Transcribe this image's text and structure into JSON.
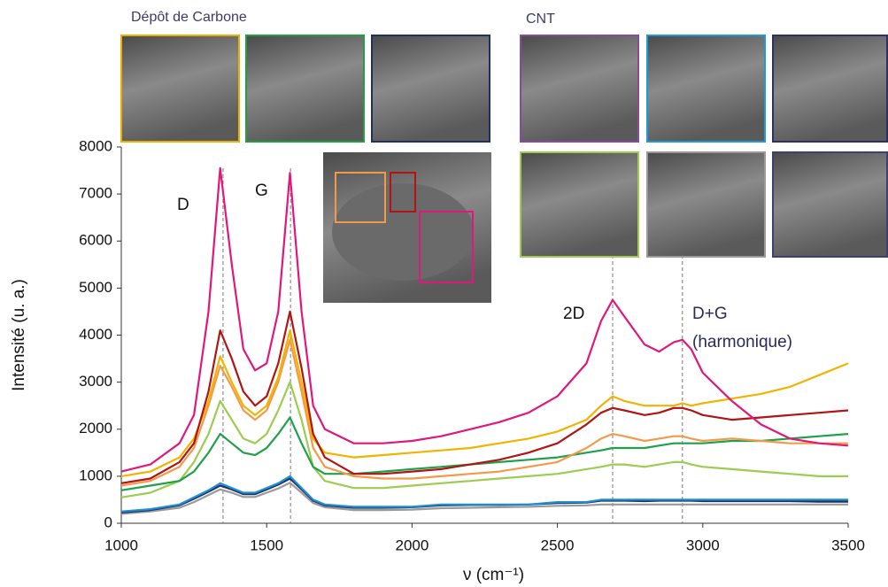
{
  "chart_data": {
    "type": "line",
    "x": [
      1000,
      1100,
      1200,
      1250,
      1300,
      1340,
      1380,
      1420,
      1460,
      1500,
      1540,
      1580,
      1620,
      1660,
      1700,
      1800,
      1900,
      2000,
      2100,
      2200,
      2300,
      2400,
      2500,
      2600,
      2650,
      2690,
      2730,
      2800,
      2850,
      2900,
      2930,
      2960,
      3000,
      3100,
      3200,
      3300,
      3400,
      3500
    ],
    "series": [
      {
        "color": "#9a9a9a",
        "values": [
          200,
          250,
          330,
          450,
          600,
          720,
          650,
          560,
          560,
          650,
          740,
          860,
          650,
          430,
          340,
          280,
          280,
          290,
          320,
          330,
          340,
          350,
          370,
          380,
          400,
          400,
          400,
          400,
          400,
          400,
          400,
          400,
          400,
          400,
          400,
          400,
          400,
          400
        ]
      },
      {
        "color": "#20305e",
        "values": [
          230,
          280,
          380,
          520,
          670,
          800,
          720,
          620,
          620,
          720,
          820,
          950,
          720,
          480,
          380,
          330,
          330,
          340,
          380,
          390,
          390,
          400,
          430,
          440,
          480,
          480,
          480,
          470,
          480,
          480,
          480,
          480,
          470,
          470,
          470,
          470,
          460,
          460
        ]
      },
      {
        "color": "#1e8fd2",
        "values": [
          250,
          300,
          400,
          550,
          700,
          850,
          750,
          650,
          650,
          750,
          850,
          1000,
          750,
          500,
          400,
          350,
          350,
          350,
          400,
          400,
          400,
          400,
          450,
          450,
          500,
          500,
          500,
          500,
          500,
          500,
          500,
          500,
          500,
          500,
          500,
          500,
          500,
          500
        ]
      },
      {
        "color": "#9ccc50",
        "values": [
          550,
          650,
          900,
          1300,
          1900,
          2600,
          2200,
          1800,
          1700,
          1900,
          2400,
          3000,
          2200,
          1200,
          900,
          750,
          750,
          800,
          850,
          900,
          950,
          1000,
          1050,
          1150,
          1200,
          1250,
          1250,
          1200,
          1250,
          1300,
          1300,
          1250,
          1200,
          1150,
          1100,
          1050,
          1000,
          1000
        ]
      },
      {
        "color": "#1fa04a",
        "values": [
          700,
          800,
          900,
          1100,
          1500,
          1900,
          1700,
          1500,
          1450,
          1600,
          1900,
          2250,
          1700,
          1200,
          1050,
          1050,
          1100,
          1150,
          1200,
          1250,
          1300,
          1350,
          1400,
          1500,
          1550,
          1600,
          1600,
          1600,
          1650,
          1700,
          1700,
          1700,
          1700,
          1750,
          1750,
          1800,
          1850,
          1900
        ]
      },
      {
        "color": "#f39a4a",
        "values": [
          800,
          900,
          1200,
          1600,
          2500,
          3350,
          2900,
          2400,
          2200,
          2400,
          3000,
          3900,
          2800,
          1600,
          1200,
          1000,
          950,
          950,
          1000,
          1050,
          1100,
          1200,
          1300,
          1600,
          1800,
          1900,
          1850,
          1750,
          1800,
          1850,
          1850,
          1800,
          1750,
          1800,
          1750,
          1700,
          1700,
          1700
        ]
      },
      {
        "color": "#f0b400",
        "values": [
          1000,
          1100,
          1400,
          1800,
          2600,
          3550,
          3000,
          2500,
          2300,
          2500,
          3100,
          4100,
          3000,
          1800,
          1500,
          1400,
          1450,
          1500,
          1550,
          1600,
          1700,
          1800,
          1950,
          2200,
          2500,
          2700,
          2600,
          2500,
          2500,
          2500,
          2550,
          2500,
          2550,
          2650,
          2750,
          2900,
          3150,
          3400
        ]
      },
      {
        "color": "#b01414",
        "values": [
          850,
          950,
          1300,
          1700,
          2800,
          4100,
          3500,
          2800,
          2500,
          2700,
          3400,
          4500,
          3300,
          1900,
          1400,
          1050,
          1050,
          1100,
          1150,
          1250,
          1350,
          1500,
          1700,
          2100,
          2350,
          2450,
          2400,
          2300,
          2350,
          2450,
          2450,
          2400,
          2300,
          2200,
          2250,
          2300,
          2350,
          2400
        ]
      },
      {
        "color": "#e0187a",
        "values": [
          1100,
          1250,
          1700,
          2300,
          4500,
          7550,
          5500,
          3700,
          3250,
          3400,
          4500,
          7450,
          4500,
          2500,
          2000,
          1700,
          1700,
          1750,
          1850,
          2000,
          2150,
          2350,
          2700,
          3400,
          4300,
          4750,
          4400,
          3800,
          3650,
          3850,
          3900,
          3700,
          3200,
          2600,
          2100,
          1800,
          1700,
          1650
        ]
      }
    ],
    "reference_lines": [
      1350,
      1582,
      2690,
      2930
    ],
    "annotations": [
      "D",
      "G",
      "2D",
      "D+G",
      "(harmonique)"
    ],
    "group_labels": [
      "Dépôt de Carbone",
      "CNT"
    ],
    "xlabel": "ν (cm⁻¹)",
    "ylabel": "Intensité (u. a.)",
    "xlim": [
      1000,
      3500
    ],
    "ylim": [
      0,
      8000
    ],
    "xticks": [
      1000,
      1500,
      2000,
      2500,
      3000,
      3500
    ],
    "yticks": [
      0,
      1000,
      2000,
      3000,
      4000,
      5000,
      6000,
      7000,
      8000
    ]
  }
}
